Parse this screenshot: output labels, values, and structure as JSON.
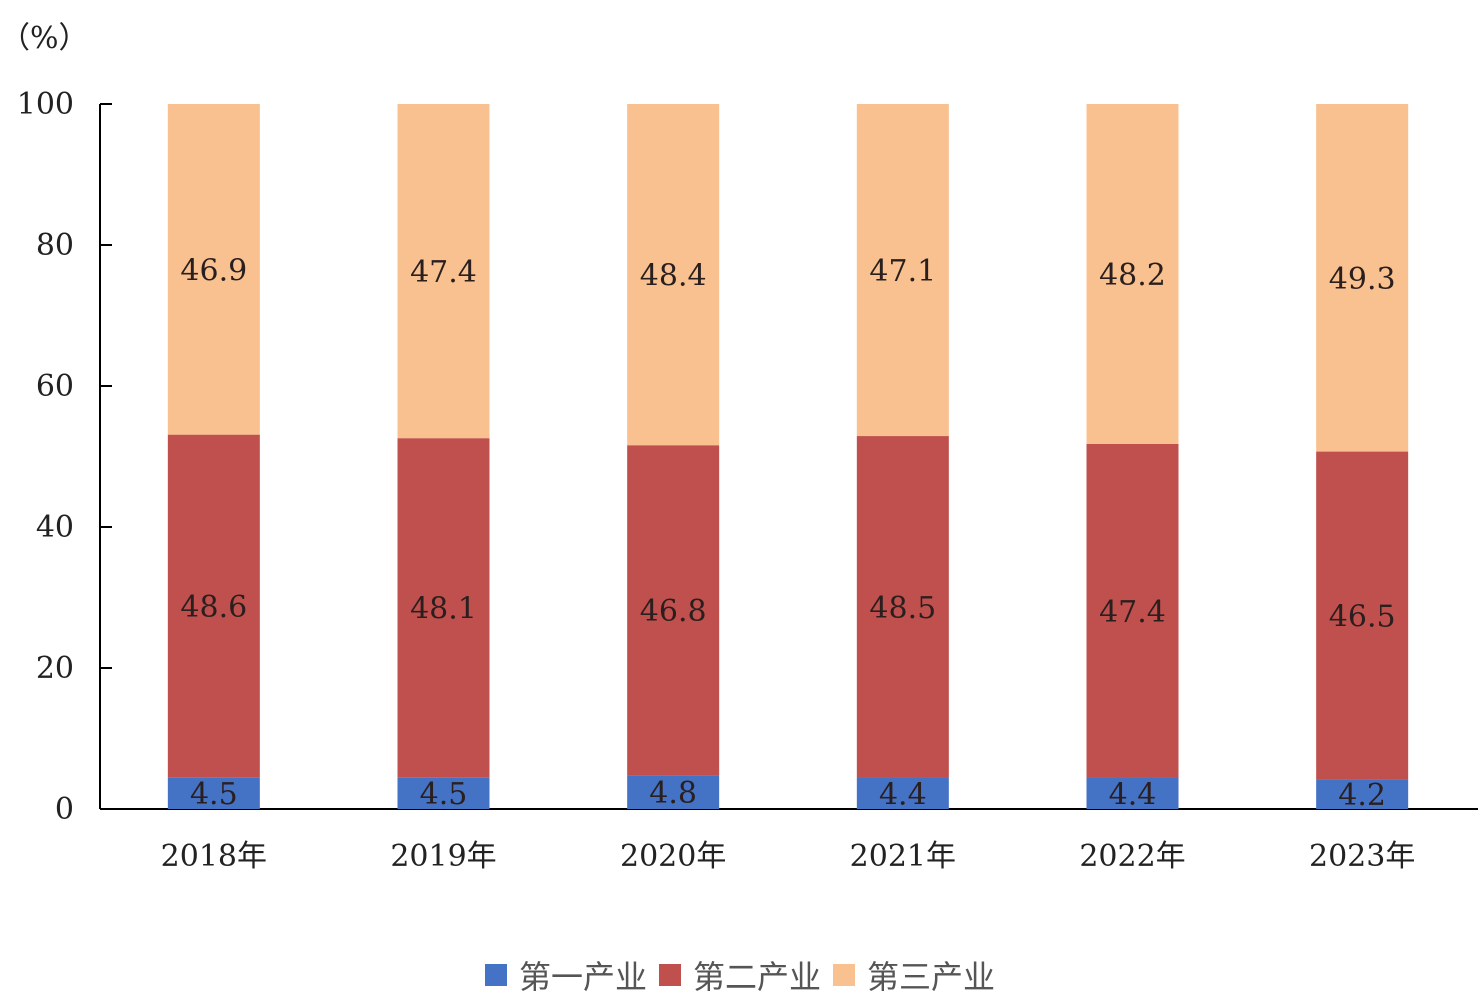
{
  "chart_data": {
    "type": "bar",
    "stacked": true,
    "unit_label": "（%）",
    "categories": [
      "2018年",
      "2019年",
      "2020年",
      "2021年",
      "2022年",
      "2023年"
    ],
    "series": [
      {
        "name": "第一产业",
        "color": "#4472c4",
        "values": [
          4.5,
          4.5,
          4.8,
          4.4,
          4.4,
          4.2
        ]
      },
      {
        "name": "第二产业",
        "color": "#c0504d",
        "values": [
          48.6,
          48.1,
          46.8,
          48.5,
          47.4,
          46.5
        ]
      },
      {
        "name": "第三产业",
        "color": "#f9c18f",
        "values": [
          46.9,
          47.4,
          48.4,
          47.1,
          48.2,
          49.3
        ]
      }
    ],
    "ylim": [
      0,
      100
    ],
    "yticks": [
      0,
      20,
      40,
      60,
      80,
      100
    ],
    "grid": false,
    "legend_position": "bottom"
  }
}
